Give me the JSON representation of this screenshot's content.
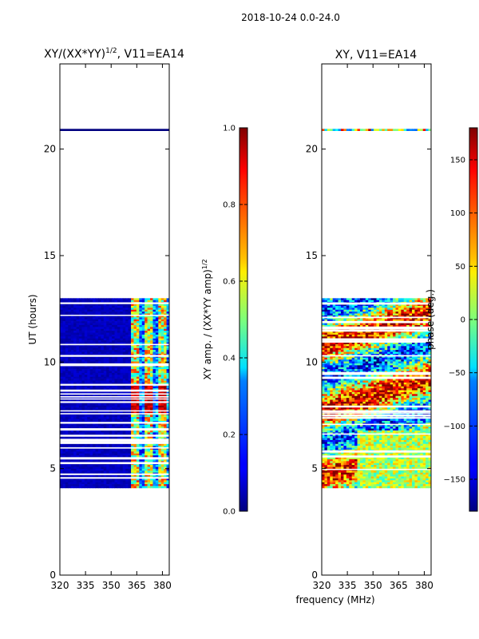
{
  "figure": {
    "suptitle": "2018-10-24 0.0-24.0",
    "shared_xlabel": "frequency (MHz)"
  },
  "chart_data": [
    {
      "type": "heatmap",
      "title": "XY/(XX*YY)",
      "title_superscript": "1/2",
      "title_suffix": ", V11=EA14",
      "ylabel": "UT (hours)",
      "xlabel": "",
      "xlim": [
        320,
        384
      ],
      "ylim": [
        0,
        24
      ],
      "xticks": [
        320,
        335,
        350,
        365,
        380
      ],
      "yticks": [
        0,
        5,
        10,
        15,
        20
      ],
      "data_bands": [
        {
          "name": "isolated-scan",
          "ut_start": 20.85,
          "ut_end": 20.95
        },
        {
          "name": "main-block",
          "ut_start": 4.15,
          "ut_end": 13.0
        }
      ],
      "colorbar": {
        "label": "XY amp. / (XX*YY amp)",
        "label_superscript": "1/2",
        "range": [
          0.0,
          1.0
        ],
        "ticks": [
          "0.0",
          "0.2",
          "0.4",
          "0.6",
          "0.8",
          "1.0"
        ],
        "colormap": "jet"
      }
    },
    {
      "type": "heatmap",
      "title": "XY, V11=EA14",
      "ylabel": "",
      "xlabel": "frequency (MHz)",
      "xlim": [
        320,
        384
      ],
      "ylim": [
        0,
        24
      ],
      "xticks": [
        320,
        335,
        350,
        365,
        380
      ],
      "yticks": [
        0,
        5,
        10,
        15,
        20
      ],
      "data_bands": [
        {
          "name": "isolated-scan",
          "ut_start": 20.85,
          "ut_end": 20.95
        },
        {
          "name": "main-block",
          "ut_start": 4.15,
          "ut_end": 13.0
        }
      ],
      "colorbar": {
        "label": "phase (deg.)",
        "range": [
          -180,
          180
        ],
        "ticks": [
          "−150",
          "−100",
          "−50",
          "0",
          "50",
          "100",
          "150"
        ],
        "tick_values": [
          -150,
          -100,
          -50,
          0,
          50,
          100,
          150
        ],
        "colormap": "jet"
      }
    }
  ]
}
